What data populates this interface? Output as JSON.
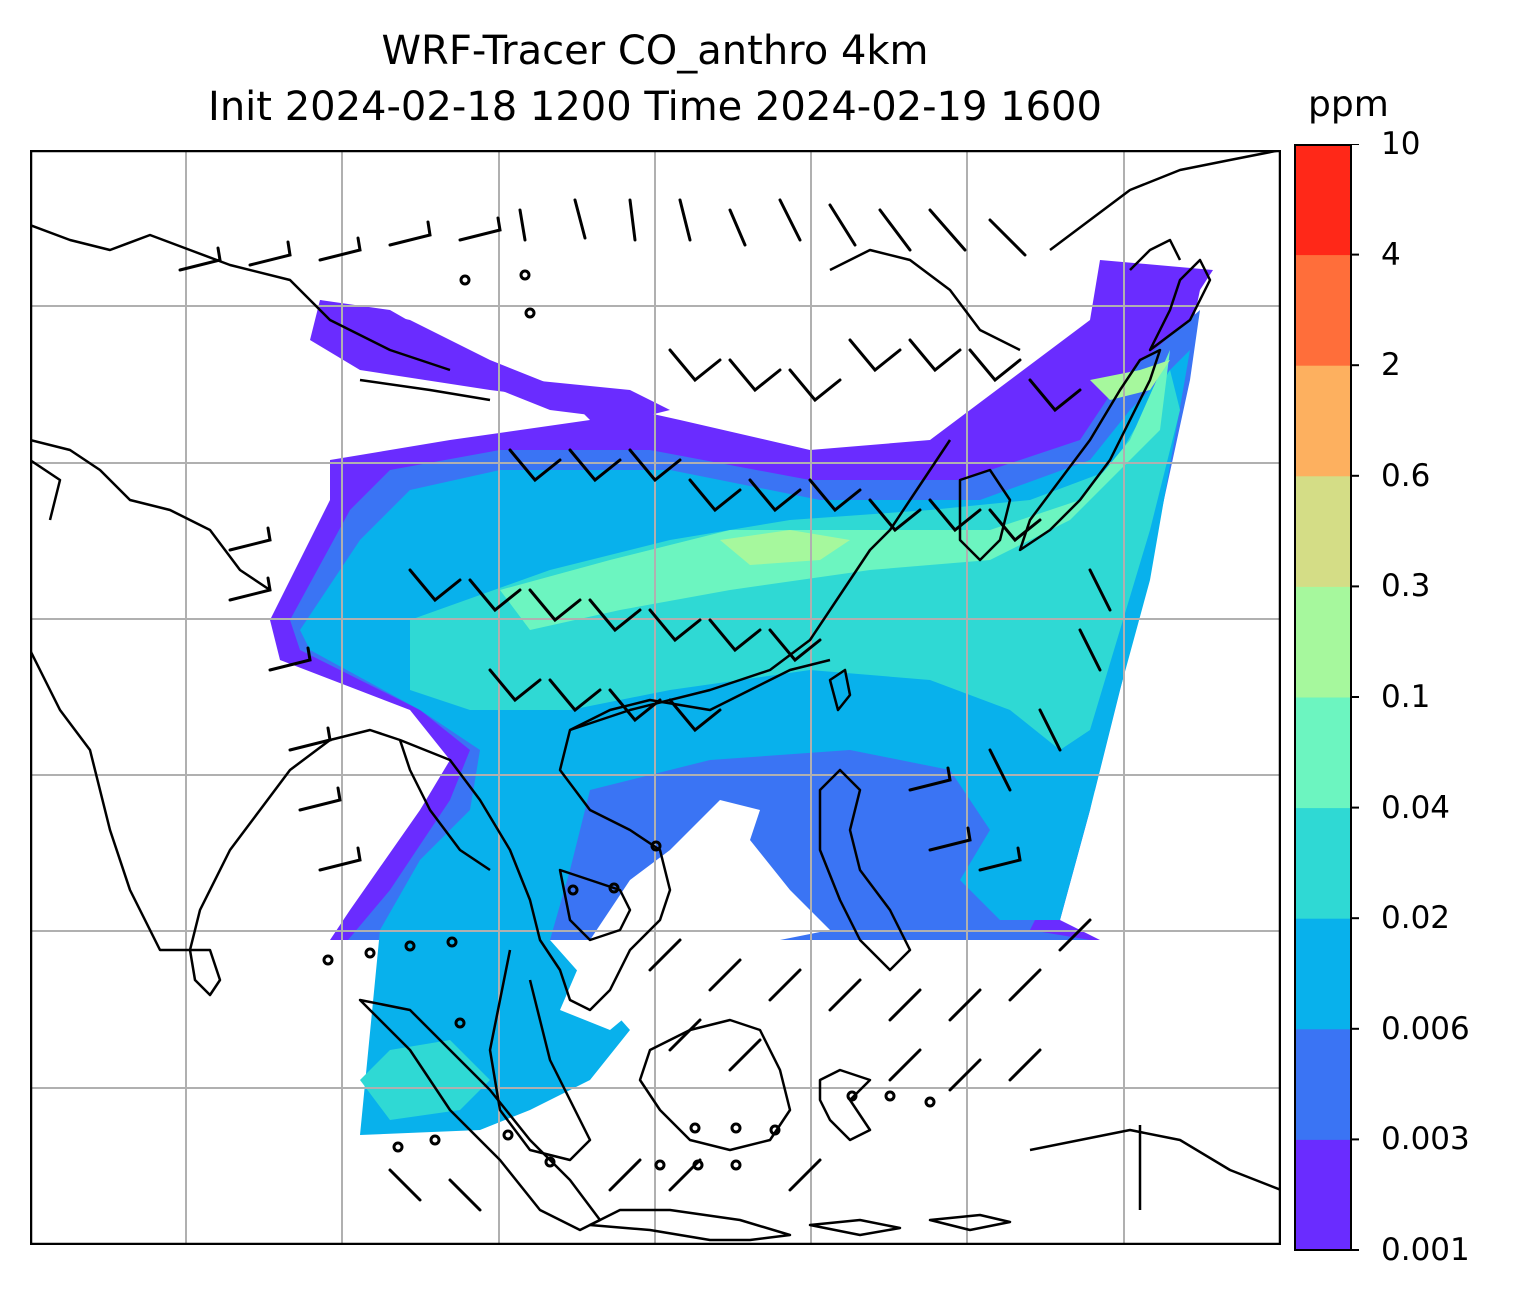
{
  "title": {
    "line1": "WRF-Tracer CO_anthro 4km",
    "line2": "Init 2024-02-18 1200 Time 2024-02-19 1600"
  },
  "colorbar": {
    "unit": "ppm",
    "levels": [
      "0.001",
      "0.003",
      "0.006",
      "0.02",
      "0.04",
      "0.1",
      "0.3",
      "0.6",
      "2",
      "4",
      "10"
    ],
    "colors": [
      "#6a2cff",
      "#3a74f4",
      "#08b1ec",
      "#2fd9d4",
      "#6cf5c0",
      "#a6f89d",
      "#d4dd86",
      "#fdb05f",
      "#ff6e3a",
      "#ff2818"
    ]
  },
  "map": {
    "gridlines": true,
    "coastline_color": "#000000",
    "grid_color": "#b0b0b0"
  }
}
